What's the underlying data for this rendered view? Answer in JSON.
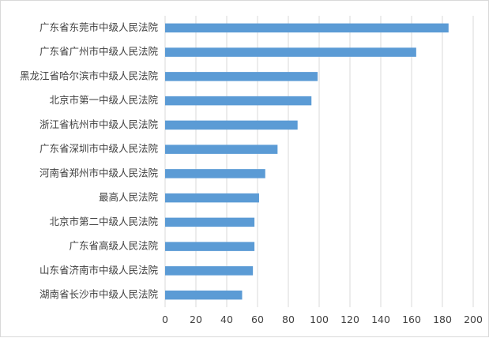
{
  "chart_data": {
    "type": "bar",
    "orientation": "horizontal",
    "title": "",
    "xlabel": "",
    "ylabel": "",
    "categories": [
      "广东省东莞市中级人民法院",
      "广东省广州市中级人民法院",
      "黑龙江省哈尔滨市中级人民法院",
      "北京市第一中级人民法院",
      "浙江省杭州市中级人民法院",
      "广东省深圳市中级人民法院",
      "河南省郑州市中级人民法院",
      "最高人民法院",
      "北京市第二中级人民法院",
      "广东省高级人民法院",
      "山东省济南市中级人民法院",
      "湖南省长沙市中级人民法院"
    ],
    "values": [
      184,
      163,
      99,
      95,
      86,
      73,
      65,
      61,
      58,
      58,
      57,
      50
    ],
    "xlim": [
      0,
      200
    ],
    "xticks": [
      0,
      20,
      40,
      60,
      80,
      100,
      120,
      140,
      160,
      180,
      200
    ],
    "grid": "vertical",
    "legend": "none",
    "bar_color": "#5b9bd5"
  }
}
